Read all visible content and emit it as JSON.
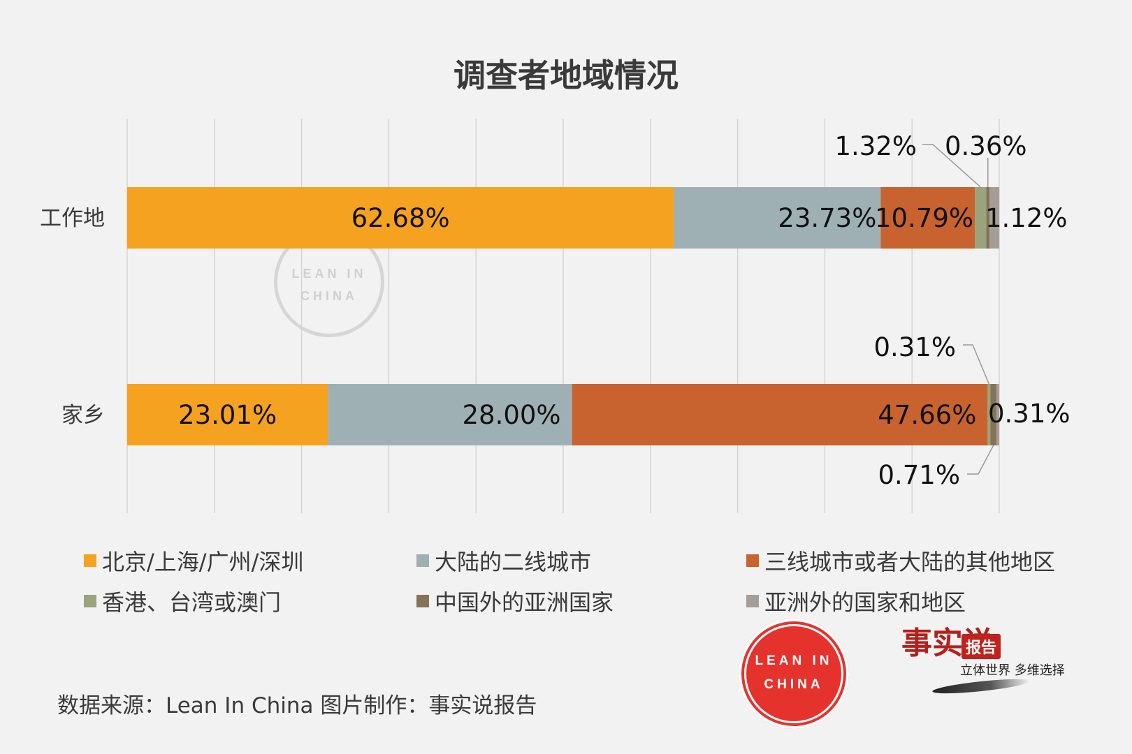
{
  "title": "调查者地域情况",
  "chart_data": {
    "type": "bar",
    "orientation": "horizontal",
    "stacked": true,
    "categories": [
      "工作地",
      "家乡"
    ],
    "series": [
      {
        "name": "北京/上海/广州/深圳",
        "color": "#f4a21f",
        "values": [
          62.68,
          23.01
        ],
        "labels": [
          "62.68%",
          "23.01%"
        ]
      },
      {
        "name": "大陆的二线城市",
        "color": "#9eb0b4",
        "values": [
          23.73,
          28.0
        ],
        "labels": [
          "23.73%",
          "28.00%"
        ]
      },
      {
        "name": "三线城市或者大陆的其他地区",
        "color": "#c8632f",
        "values": [
          10.79,
          47.66
        ],
        "labels": [
          "10.79%",
          "47.66%"
        ]
      },
      {
        "name": "香港、台湾或澳门",
        "color": "#9aa47c",
        "values": [
          1.32,
          0.31
        ],
        "labels": [
          "1.32%",
          "0.31%"
        ]
      },
      {
        "name": "中国外的亚洲国家",
        "color": "#847358",
        "values": [
          0.36,
          0.71
        ],
        "labels": [
          "0.36%",
          "0.71%"
        ]
      },
      {
        "name": "亚洲外的国家和地区",
        "color": "#a69e96",
        "values": [
          1.12,
          0.31
        ],
        "labels": [
          "1.12%",
          "0.31%"
        ]
      }
    ],
    "xlim": [
      0,
      100
    ],
    "grid": true,
    "legend_position": "bottom"
  },
  "source": "数据来源：Lean In China  图片制作：事实说报告",
  "logo": {
    "line1": "LEAN IN",
    "line2": "CHINA"
  },
  "watermark_logo": {
    "line1": "LEAN IN",
    "line2": "CHINA"
  },
  "brand": {
    "calligraphy": "事实说",
    "badge": "报告",
    "slogan": "立体世界 多维选择"
  }
}
